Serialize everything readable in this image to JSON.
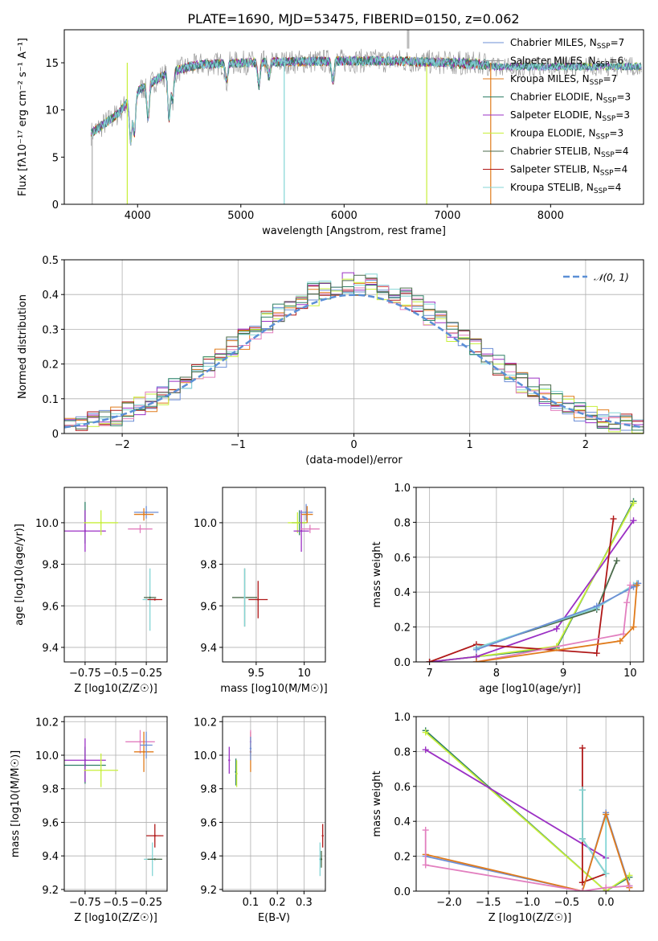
{
  "figure_title": "PLATE=1690, MJD=53475, FIBERID=0150, z=0.062",
  "colors": {
    "Chabrier MILES": "#6d8fd6",
    "Salpeter MILES": "#9b9b9b",
    "Kroupa MILES": "#e07b1b",
    "Chabrier ELODIE": "#2f7f66",
    "Salpeter ELODIE": "#9b30c4",
    "Kroupa ELODIE": "#c7ef3a",
    "Chabrier STELIB": "#4b6b4b",
    "Salpeter STELIB": "#b01818",
    "Kroupa STELIB": "#84d6d6",
    "pink": "#e27fbf",
    "normal": "#5b8fd6"
  },
  "chart_data": [
    {
      "id": "spectrum",
      "type": "line",
      "xlabel": "wavelength [Angstrom, rest frame]",
      "ylabel": "Flux [fλ10⁻¹⁷ erg cm⁻² s⁻¹ A⁻¹]",
      "xlim": [
        3290,
        8900
      ],
      "ylim": [
        0,
        18.5
      ],
      "xticks": [
        4000,
        5000,
        6000,
        7000,
        8000
      ],
      "yticks": [
        0,
        5,
        10,
        15
      ],
      "grid": false,
      "legend_position": "right",
      "legend": [
        "Chabrier MILES, N_SSP=7",
        "Salpeter MILES, N_SSP=6",
        "Kroupa MILES, N_SSP=7",
        "Chabrier ELODIE, N_SSP=3",
        "Salpeter ELODIE, N_SSP=3",
        "Kroupa ELODIE, N_SSP=3",
        "Chabrier STELIB, N_SSP=4",
        "Salpeter STELIB, N_SSP=4",
        "Kroupa STELIB, N_SSP=4"
      ],
      "legend_display": [
        {
          "pre": "Chabrier MILES, N",
          "sub": "SSP",
          "post": "=7"
        },
        {
          "pre": "Salpeter MILES, N",
          "sub": "SSP",
          "post": "=6"
        },
        {
          "pre": "Kroupa MILES, N",
          "sub": "SSP",
          "post": "=7"
        },
        {
          "pre": "Chabrier ELODIE, N",
          "sub": "SSP",
          "post": "=3"
        },
        {
          "pre": "Salpeter ELODIE, N",
          "sub": "SSP",
          "post": "=3"
        },
        {
          "pre": "Kroupa ELODIE, N",
          "sub": "SSP",
          "post": "=3"
        },
        {
          "pre": "Chabrier STELIB, N",
          "sub": "SSP",
          "post": "=4"
        },
        {
          "pre": "Salpeter STELIB, N",
          "sub": "SSP",
          "post": "=4"
        },
        {
          "pre": "Kroupa STELIB, N",
          "sub": "SSP",
          "post": "=4"
        }
      ],
      "continuum": {
        "x": [
          3550,
          3800,
          4000,
          4300,
          4600,
          5000,
          5500,
          6000,
          6500,
          7000,
          7400
        ],
        "y": [
          7.5,
          9.5,
          12.0,
          14.0,
          14.8,
          15.0,
          15.1,
          15.2,
          15.2,
          15.0,
          14.8
        ]
      },
      "absorption_lines": [
        {
          "x": 3934,
          "depth": 4.5
        },
        {
          "x": 3969,
          "depth": 4.0
        },
        {
          "x": 4102,
          "depth": 3.5
        },
        {
          "x": 4305,
          "depth": 5.0
        },
        {
          "x": 4340,
          "depth": 3.0
        },
        {
          "x": 4861,
          "depth": 2.0
        },
        {
          "x": 5175,
          "depth": 2.5
        },
        {
          "x": 5270,
          "depth": 1.5
        },
        {
          "x": 5890,
          "depth": 2.0
        }
      ],
      "cutoffs": [
        {
          "x": 3900,
          "series": "Kroupa ELODIE"
        },
        {
          "x": 5420,
          "series": "Kroupa STELIB"
        },
        {
          "x": 6800,
          "series": "Kroupa ELODIE"
        },
        {
          "x": 7420,
          "series": "Kroupa MILES"
        }
      ]
    },
    {
      "id": "residuals",
      "type": "histogram",
      "xlabel": "(data-model)/error",
      "ylabel": "Normed distribution",
      "xlim": [
        -2.5,
        2.5
      ],
      "ylim": [
        0,
        0.5
      ],
      "xticks": [
        -2,
        -1,
        0,
        1,
        2
      ],
      "yticks": [
        0.0,
        0.1,
        0.2,
        0.3,
        0.4,
        0.5
      ],
      "bin_width": 0.1,
      "grid": true,
      "legend": [
        "𝒩(0, 1)"
      ],
      "legend_position": "top-right"
    },
    {
      "id": "age_vs_Z",
      "type": "errorbar",
      "xlabel": "Z [log10(Z/Z☉)]",
      "ylabel": "age  [log10(age/yr)]",
      "xlim": [
        -0.92,
        -0.08
      ],
      "ylim": [
        9.33,
        10.17
      ],
      "xticks": [
        -0.75,
        -0.5,
        -0.25
      ],
      "yticks": [
        9.4,
        9.6,
        9.8,
        10.0
      ],
      "grid": true,
      "points": [
        {
          "s": "Chabrier ELODIE",
          "x": -0.75,
          "y": 10.0,
          "xe": 0.0,
          "ye": 0.1
        },
        {
          "s": "Salpeter ELODIE",
          "x": -0.75,
          "y": 9.96,
          "xe": 0.17,
          "ye": 0.1
        },
        {
          "s": "Kroupa ELODIE",
          "x": -0.62,
          "y": 10.0,
          "xe": 0.14,
          "ye": 0.06
        },
        {
          "s": "Chabrier MILES",
          "x": -0.25,
          "y": 10.05,
          "xe": 0.1,
          "ye": 0.03
        },
        {
          "s": "Kroupa MILES",
          "x": -0.27,
          "y": 10.04,
          "xe": 0.08,
          "ye": 0.03
        },
        {
          "s": "pink",
          "x": -0.3,
          "y": 9.97,
          "xe": 0.1,
          "ye": 0.02
        },
        {
          "s": "Kroupa STELIB",
          "x": -0.22,
          "y": 9.63,
          "xe": 0.06,
          "ye": 0.15
        },
        {
          "s": "Salpeter STELIB",
          "x": -0.18,
          "y": 9.63,
          "xe": 0.06,
          "ye": 0.0
        },
        {
          "s": "Chabrier STELIB",
          "x": -0.22,
          "y": 9.64,
          "xe": 0.05,
          "ye": 0.0
        }
      ]
    },
    {
      "id": "age_vs_mass",
      "type": "errorbar",
      "xlabel": "mass [log10(M/M☉)]",
      "ylabel": "",
      "xlim": [
        9.15,
        10.22
      ],
      "ylim": [
        9.33,
        10.17
      ],
      "xticks": [
        9.5,
        10.0
      ],
      "yticks": [
        9.4,
        9.6,
        9.8,
        10.0
      ],
      "grid": true,
      "points": [
        {
          "s": "Chabrier ELODIE",
          "x": 9.95,
          "y": 10.0,
          "xe": 0.08,
          "ye": 0.06
        },
        {
          "s": "Kroupa ELODIE",
          "x": 9.93,
          "y": 10.0,
          "xe": 0.1,
          "ye": 0.05
        },
        {
          "s": "Salpeter ELODIE",
          "x": 9.97,
          "y": 9.96,
          "xe": 0.08,
          "ye": 0.1
        },
        {
          "s": "Chabrier MILES",
          "x": 10.02,
          "y": 10.05,
          "xe": 0.07,
          "ye": 0.04
        },
        {
          "s": "Kroupa MILES",
          "x": 10.03,
          "y": 10.04,
          "xe": 0.06,
          "ye": 0.04
        },
        {
          "s": "pink",
          "x": 10.06,
          "y": 9.97,
          "xe": 0.1,
          "ye": 0.02
        },
        {
          "s": "Chabrier STELIB",
          "x": 9.38,
          "y": 9.64,
          "xe": 0.13,
          "ye": 0.14
        },
        {
          "s": "Kroupa STELIB",
          "x": 9.38,
          "y": 9.64,
          "xe": 0.0,
          "ye": 0.14
        },
        {
          "s": "Salpeter STELIB",
          "x": 9.52,
          "y": 9.63,
          "xe": 0.1,
          "ye": 0.09
        }
      ]
    },
    {
      "id": "weight_vs_age",
      "type": "line",
      "xlabel": "age  [log10(age/yr)]",
      "ylabel": "mass weight",
      "xlim": [
        6.8,
        10.2
      ],
      "ylim": [
        0,
        1.0
      ],
      "xticks": [
        7,
        8,
        9,
        10
      ],
      "yticks": [
        0.0,
        0.2,
        0.4,
        0.6,
        0.8,
        1.0
      ],
      "grid": true,
      "series": [
        {
          "s": "Chabrier ELODIE",
          "x": [
            7.0,
            7.7,
            8.9,
            10.05
          ],
          "y": [
            0.0,
            0.03,
            0.08,
            0.92
          ]
        },
        {
          "s": "Kroupa ELODIE",
          "x": [
            7.0,
            7.7,
            8.9,
            10.05
          ],
          "y": [
            0.0,
            0.03,
            0.09,
            0.91
          ]
        },
        {
          "s": "Salpeter ELODIE",
          "x": [
            7.0,
            7.7,
            8.9,
            10.05
          ],
          "y": [
            0.0,
            0.03,
            0.19,
            0.81
          ]
        },
        {
          "s": "Salpeter STELIB",
          "x": [
            7.0,
            7.7,
            9.5,
            9.75
          ],
          "y": [
            0.0,
            0.1,
            0.05,
            0.82
          ]
        },
        {
          "s": "Chabrier STELIB",
          "x": [
            7.7,
            9.5,
            9.8
          ],
          "y": [
            0.08,
            0.3,
            0.58
          ]
        },
        {
          "s": "Kroupa STELIB",
          "x": [
            7.7,
            9.5,
            10.05,
            10.1
          ],
          "y": [
            0.08,
            0.31,
            0.44,
            0.45
          ]
        },
        {
          "s": "Chabrier MILES",
          "x": [
            7.7,
            9.5,
            10.05,
            10.12
          ],
          "y": [
            0.07,
            0.32,
            0.43,
            0.45
          ]
        },
        {
          "s": "pink",
          "x": [
            7.7,
            9.9,
            9.95,
            10.0
          ],
          "y": [
            0.0,
            0.16,
            0.34,
            0.44
          ]
        },
        {
          "s": "Kroupa MILES",
          "x": [
            7.7,
            9.85,
            10.05,
            10.1
          ],
          "y": [
            0.0,
            0.12,
            0.2,
            0.44
          ]
        }
      ]
    },
    {
      "id": "mass_vs_Z",
      "type": "errorbar",
      "xlabel": "Z [log10(Z/Z☉)]",
      "ylabel": "mass [log10(M/M☉)]",
      "xlim": [
        -0.92,
        -0.08
      ],
      "ylim": [
        9.19,
        10.23
      ],
      "xticks": [
        -0.75,
        -0.5,
        -0.25
      ],
      "yticks": [
        9.2,
        9.4,
        9.6,
        9.8,
        10.0,
        10.2
      ],
      "grid": true,
      "points": [
        {
          "s": "Chabrier ELODIE",
          "x": -0.75,
          "y": 9.94,
          "xe": 0.17,
          "ye": 0.11
        },
        {
          "s": "Salpeter ELODIE",
          "x": -0.75,
          "y": 9.97,
          "xe": 0.17,
          "ye": 0.13
        },
        {
          "s": "Kroupa ELODIE",
          "x": -0.62,
          "y": 9.91,
          "xe": 0.14,
          "ye": 0.1
        },
        {
          "s": "pink",
          "x": -0.3,
          "y": 10.08,
          "xe": 0.12,
          "ye": 0.07
        },
        {
          "s": "Kroupa MILES",
          "x": -0.27,
          "y": 10.02,
          "xe": 0.08,
          "ye": 0.12
        },
        {
          "s": "Chabrier MILES",
          "x": -0.25,
          "y": 10.06,
          "xe": 0.05,
          "ye": 0.08
        },
        {
          "s": "Salpeter STELIB",
          "x": -0.18,
          "y": 9.52,
          "xe": 0.07,
          "ye": 0.07
        },
        {
          "s": "Kroupa STELIB",
          "x": -0.2,
          "y": 9.38,
          "xe": 0.07,
          "ye": 0.1
        },
        {
          "s": "Chabrier STELIB",
          "x": -0.18,
          "y": 9.38,
          "xe": 0.06,
          "ye": 0.0
        }
      ]
    },
    {
      "id": "mass_vs_ebv",
      "type": "errorbar",
      "xlabel": "E(B-V)",
      "ylabel": "",
      "xlim": [
        -0.005,
        0.38
      ],
      "ylim": [
        9.19,
        10.23
      ],
      "xticks": [
        0.1,
        0.2,
        0.3
      ],
      "yticks": [
        9.2,
        9.4,
        9.6,
        9.8,
        10.0,
        10.2
      ],
      "grid": true,
      "points": [
        {
          "s": "Salpeter ELODIE",
          "x": 0.02,
          "y": 9.97,
          "xe": 0.0,
          "ye": 0.08
        },
        {
          "s": "Chabrier ELODIE",
          "x": 0.045,
          "y": 9.9,
          "xe": 0.0,
          "ye": 0.08
        },
        {
          "s": "Kroupa ELODIE",
          "x": 0.048,
          "y": 9.89,
          "xe": 0.0,
          "ye": 0.08
        },
        {
          "s": "Kroupa MILES",
          "x": 0.1,
          "y": 10.02,
          "xe": 0.0,
          "ye": 0.12
        },
        {
          "s": "pink",
          "x": 0.1,
          "y": 10.08,
          "xe": 0.0,
          "ye": 0.07
        },
        {
          "s": "Chabrier MILES",
          "x": 0.1,
          "y": 10.04,
          "xe": 0.0,
          "ye": 0.07
        },
        {
          "s": "Salpeter STELIB",
          "x": 0.37,
          "y": 9.52,
          "xe": 0.0,
          "ye": 0.07
        },
        {
          "s": "Kroupa STELIB",
          "x": 0.36,
          "y": 9.38,
          "xe": 0.0,
          "ye": 0.1
        },
        {
          "s": "Chabrier STELIB",
          "x": 0.365,
          "y": 9.38,
          "xe": 0.0,
          "ye": 0.05
        }
      ]
    },
    {
      "id": "weight_vs_Z",
      "type": "line",
      "xlabel": "Z [log10(Z/Z☉)]",
      "ylabel": "mass weight",
      "xlim": [
        -2.42,
        0.48
      ],
      "ylim": [
        0,
        1.0
      ],
      "xticks": [
        -2.0,
        -1.5,
        -1.0,
        -0.5,
        0.0
      ],
      "yticks": [
        0.0,
        0.2,
        0.4,
        0.6,
        0.8,
        1.0
      ],
      "grid": true,
      "series": [
        {
          "s": "Chabrier ELODIE",
          "x": [
            -2.3,
            0.0,
            0.3
          ],
          "y": [
            0.92,
            0.0,
            0.08
          ]
        },
        {
          "s": "Kroupa ELODIE",
          "x": [
            -2.3,
            0.0,
            0.3
          ],
          "y": [
            0.91,
            0.0,
            0.09
          ]
        },
        {
          "s": "Salpeter ELODIE",
          "x": [
            -2.3,
            0.0
          ],
          "y": [
            0.81,
            0.19
          ]
        },
        {
          "s": "Salpeter STELIB",
          "x": [
            -0.3,
            -0.3,
            -0.3,
            0.0
          ],
          "y": [
            0.82,
            0.05,
            0.05,
            0.1
          ]
        },
        {
          "s": "Chabrier STELIB",
          "x": [
            -0.3,
            -0.3,
            0.0
          ],
          "y": [
            0.58,
            0.3,
            0.1
          ]
        },
        {
          "s": "Kroupa STELIB",
          "x": [
            -0.3,
            -0.3,
            0.0,
            0.0
          ],
          "y": [
            0.58,
            0.3,
            0.1,
            0.44
          ]
        },
        {
          "s": "Chabrier MILES",
          "x": [
            -2.3,
            -0.3,
            0.0,
            0.3
          ],
          "y": [
            0.2,
            0.0,
            0.45,
            0.03
          ]
        },
        {
          "s": "Kroupa MILES",
          "x": [
            -2.3,
            -0.3,
            0.0,
            0.3
          ],
          "y": [
            0.21,
            0.0,
            0.44,
            0.02
          ]
        },
        {
          "s": "pink",
          "x": [
            -2.3,
            -2.3,
            -0.3,
            0.0,
            0.3
          ],
          "y": [
            0.35,
            0.15,
            0.0,
            0.02,
            0.03
          ]
        }
      ]
    }
  ]
}
